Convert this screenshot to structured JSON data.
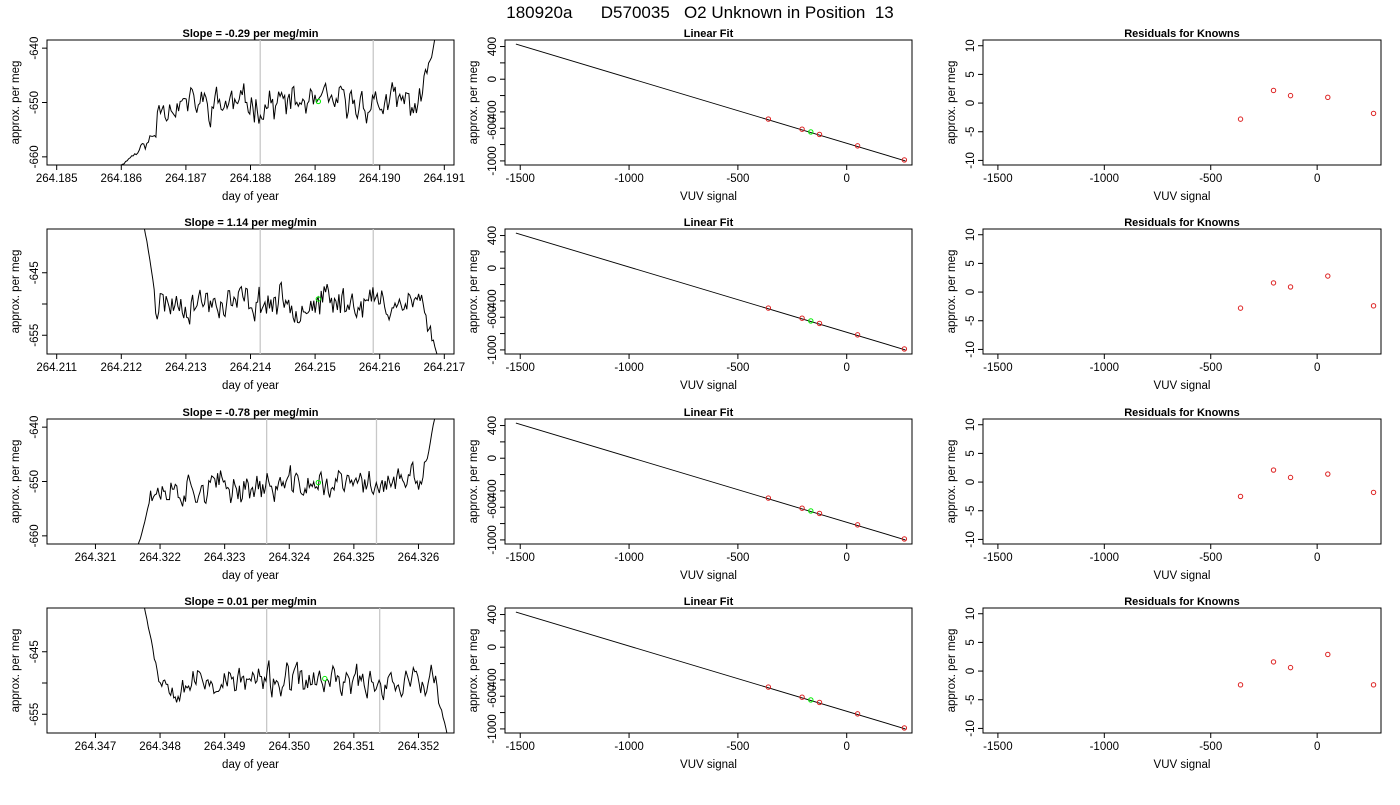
{
  "page": {
    "title": "180920a      D570035   O2 Unknown in Position  13",
    "colors": {
      "trace": "#000000",
      "marker_green": "#00ee00",
      "known_red": "#dd2222",
      "vline": "#c8c8c8"
    }
  },
  "chart_data": [
    {
      "type": "line",
      "title": "Slope =  -0.29  per meg/min",
      "xlabel": "day of year",
      "ylabel": "approx. per meg",
      "xlim": [
        264.18485,
        264.19115
      ],
      "ylim": [
        -661.5,
        -638.5
      ],
      "xticks": [
        264.185,
        264.186,
        264.187,
        264.188,
        264.189,
        264.19,
        264.191
      ],
      "xtick_labels": [
        "264.185",
        "264.186",
        "264.187",
        "264.188",
        "264.189",
        "264.190",
        "264.191"
      ],
      "yticks": [
        -660,
        -650,
        -640
      ],
      "ytick_labels": [
        "-660",
        "-650",
        "-640"
      ],
      "vlines": [
        264.18815,
        264.1899
      ],
      "green_point": [
        264.18905,
        -649.8
      ],
      "trace": {
        "x_start": 264.18595,
        "x_end": 264.19085,
        "n": 210,
        "lead_start": -662,
        "lead_base": -656,
        "lead_frac": 0.12,
        "mean": -650.2,
        "amp": 2.6,
        "trend": -0.1,
        "tail_end": -638.5,
        "tail_frac": 0.04,
        "seed": 11
      }
    },
    {
      "type": "line",
      "title": "Linear Fit",
      "xlabel": "VUV signal",
      "ylabel": "approx. per meg",
      "xlim": [
        -1570,
        300
      ],
      "ylim": [
        -1050,
        480
      ],
      "xticks": [
        -1500,
        -1000,
        -500,
        0
      ],
      "xtick_labels": [
        "-1500",
        "-1000",
        "-500",
        "0"
      ],
      "yticks": [
        -1000,
        -800,
        -600,
        -400,
        -200,
        0,
        200,
        400
      ],
      "ytick_labels": [
        "-1000",
        "",
        "-600",
        "-400",
        "",
        "0",
        "",
        "400"
      ],
      "fit_line": [
        [
          -1520,
          430
        ],
        [
          270,
          -1000
        ]
      ],
      "known_points": [
        [
          -360,
          -488
        ],
        [
          -205,
          -612
        ],
        [
          -125,
          -676
        ],
        [
          50,
          -816
        ],
        [
          265,
          -988
        ]
      ],
      "green_point": [
        -165,
        -645
      ]
    },
    {
      "type": "scatter",
      "title": "Residuals for Knowns",
      "xlabel": "VUV signal",
      "ylabel": "approx. per meg",
      "xlim": [
        -1570,
        300
      ],
      "ylim": [
        -10.8,
        11
      ],
      "xticks": [
        -1500,
        -1000,
        -500,
        0
      ],
      "xtick_labels": [
        "-1500",
        "-1000",
        "-500",
        "0"
      ],
      "yticks": [
        -10,
        -5,
        0,
        5,
        10
      ],
      "ytick_labels": [
        "-10",
        "-5",
        "0",
        "5",
        "10"
      ],
      "points": [
        [
          -360,
          -2.8
        ],
        [
          -205,
          2.2
        ],
        [
          -125,
          1.3
        ],
        [
          50,
          1.0
        ],
        [
          265,
          -1.8
        ]
      ]
    },
    {
      "type": "line",
      "title": "Slope =  1.14  per meg/min",
      "xlabel": "day of year",
      "ylabel": "approx. per meg",
      "xlim": [
        264.21085,
        264.21715
      ],
      "ylim": [
        -658,
        -638
      ],
      "xticks": [
        264.211,
        264.212,
        264.213,
        264.214,
        264.215,
        264.216,
        264.217
      ],
      "xtick_labels": [
        "264.211",
        "264.212",
        "264.213",
        "264.214",
        "264.215",
        "264.216",
        "264.217"
      ],
      "yticks": [
        -655,
        -650,
        -645
      ],
      "ytick_labels": [
        "-655",
        "",
        "-645"
      ],
      "vlines": [
        264.21415,
        264.2159
      ],
      "green_point": [
        264.21505,
        -649.2
      ],
      "trace": {
        "x_start": 264.21235,
        "x_end": 264.2169,
        "n": 200,
        "lead_start": -637.5,
        "lead_base": -648,
        "lead_frac": 0.04,
        "mean": -649.7,
        "amp": 2.3,
        "trend": 0.0,
        "tail_end": -658.5,
        "tail_frac": 0.05,
        "seed": 23
      }
    },
    {
      "type": "line",
      "title": "Linear Fit",
      "xlabel": "VUV signal",
      "ylabel": "approx. per meg",
      "xlim": [
        -1570,
        300
      ],
      "ylim": [
        -1050,
        480
      ],
      "xticks": [
        -1500,
        -1000,
        -500,
        0
      ],
      "xtick_labels": [
        "-1500",
        "-1000",
        "-500",
        "0"
      ],
      "yticks": [
        -1000,
        -800,
        -600,
        -400,
        -200,
        0,
        200,
        400
      ],
      "ytick_labels": [
        "-1000",
        "",
        "-600",
        "-400",
        "",
        "0",
        "",
        "400"
      ],
      "fit_line": [
        [
          -1520,
          430
        ],
        [
          270,
          -1000
        ]
      ],
      "known_points": [
        [
          -360,
          -488
        ],
        [
          -205,
          -612
        ],
        [
          -125,
          -676
        ],
        [
          50,
          -816
        ],
        [
          265,
          -988
        ]
      ],
      "green_point": [
        -165,
        -645
      ]
    },
    {
      "type": "scatter",
      "title": "Residuals for Knowns",
      "xlabel": "VUV signal",
      "ylabel": "approx. per meg",
      "xlim": [
        -1570,
        300
      ],
      "ylim": [
        -10.8,
        11
      ],
      "xticks": [
        -1500,
        -1000,
        -500,
        0
      ],
      "xtick_labels": [
        "-1500",
        "-1000",
        "-500",
        "0"
      ],
      "yticks": [
        -10,
        -5,
        0,
        5,
        10
      ],
      "ytick_labels": [
        "-10",
        "-5",
        "0",
        "5",
        "10"
      ],
      "points": [
        [
          -360,
          -2.8
        ],
        [
          -205,
          1.6
        ],
        [
          -125,
          0.9
        ],
        [
          50,
          2.8
        ],
        [
          265,
          -2.4
        ]
      ]
    },
    {
      "type": "line",
      "title": "Slope =  -0.78  per meg/min",
      "xlabel": "day of year",
      "ylabel": "approx. per meg",
      "xlim": [
        264.32025,
        264.32655
      ],
      "ylim": [
        -661.5,
        -638.5
      ],
      "xticks": [
        264.321,
        264.322,
        264.323,
        264.324,
        264.325,
        264.326
      ],
      "xtick_labels": [
        "264.321",
        "264.322",
        "264.323",
        "264.324",
        "264.325",
        "264.326"
      ],
      "yticks": [
        -660,
        -650,
        -640
      ],
      "ytick_labels": [
        "-660",
        "-650",
        "-640"
      ],
      "vlines": [
        264.32365,
        264.32535
      ],
      "green_point": [
        264.32445,
        -650.2
      ],
      "trace": {
        "x_start": 264.32165,
        "x_end": 264.32625,
        "n": 205,
        "lead_start": -662,
        "lead_base": -654,
        "lead_frac": 0.04,
        "mean": -650.8,
        "amp": 2.4,
        "trend": 1.5,
        "tail_end": -638.5,
        "tail_frac": 0.04,
        "seed": 37
      }
    },
    {
      "type": "line",
      "title": "Linear Fit",
      "xlabel": "VUV signal",
      "ylabel": "approx. per meg",
      "xlim": [
        -1570,
        300
      ],
      "ylim": [
        -1050,
        480
      ],
      "xticks": [
        -1500,
        -1000,
        -500,
        0
      ],
      "xtick_labels": [
        "-1500",
        "-1000",
        "-500",
        "0"
      ],
      "yticks": [
        -1000,
        -800,
        -600,
        -400,
        -200,
        0,
        200,
        400
      ],
      "ytick_labels": [
        "-1000",
        "",
        "-600",
        "-400",
        "",
        "0",
        "",
        "400"
      ],
      "fit_line": [
        [
          -1520,
          430
        ],
        [
          270,
          -1000
        ]
      ],
      "known_points": [
        [
          -360,
          -488
        ],
        [
          -205,
          -612
        ],
        [
          -125,
          -676
        ],
        [
          50,
          -816
        ],
        [
          265,
          -988
        ]
      ],
      "green_point": [
        -165,
        -645
      ]
    },
    {
      "type": "scatter",
      "title": "Residuals for Knowns",
      "xlabel": "VUV signal",
      "ylabel": "approx. per meg",
      "xlim": [
        -1570,
        300
      ],
      "ylim": [
        -10.8,
        11
      ],
      "xticks": [
        -1500,
        -1000,
        -500,
        0
      ],
      "xtick_labels": [
        "-1500",
        "-1000",
        "-500",
        "0"
      ],
      "yticks": [
        -10,
        -5,
        0,
        5,
        10
      ],
      "points": [
        [
          -360,
          -2.5
        ],
        [
          -205,
          2.1
        ],
        [
          -125,
          0.8
        ],
        [
          50,
          1.4
        ],
        [
          265,
          -1.8
        ]
      ],
      "ytick_labels": [
        "-10",
        "-5",
        "0",
        "5",
        "10"
      ]
    },
    {
      "type": "line",
      "title": "Slope =  0.01  per meg/min",
      "xlabel": "day of year",
      "ylabel": "approx. per meg",
      "xlim": [
        264.34625,
        264.35255
      ],
      "ylim": [
        -658,
        -638
      ],
      "xticks": [
        264.347,
        264.348,
        264.349,
        264.35,
        264.351,
        264.352
      ],
      "xtick_labels": [
        "264.347",
        "264.348",
        "264.349",
        "264.350",
        "264.351",
        "264.352"
      ],
      "yticks": [
        -655,
        -650,
        -645
      ],
      "ytick_labels": [
        "-655",
        "",
        "-645"
      ],
      "vlines": [
        264.34965,
        264.3514
      ],
      "green_point": [
        264.35055,
        -649.3
      ],
      "trace": {
        "x_start": 264.34775,
        "x_end": 264.35245,
        "n": 205,
        "lead_start": -637.5,
        "lead_base": -649,
        "lead_frac": 0.05,
        "mean": -649.8,
        "amp": 2.1,
        "trend": 0.0,
        "tail_end": -658.5,
        "tail_frac": 0.04,
        "seed": 53
      }
    },
    {
      "type": "line",
      "title": "Linear Fit",
      "xlabel": "VUV signal",
      "ylabel": "approx. per meg",
      "xlim": [
        -1570,
        300
      ],
      "ylim": [
        -1050,
        480
      ],
      "xticks": [
        -1500,
        -1000,
        -500,
        0
      ],
      "xtick_labels": [
        "-1500",
        "-1000",
        "-500",
        "0"
      ],
      "yticks": [
        -1000,
        -800,
        -600,
        -400,
        -200,
        0,
        200,
        400
      ],
      "ytick_labels": [
        "-1000",
        "",
        "-600",
        "-400",
        "",
        "0",
        "",
        "400"
      ],
      "fit_line": [
        [
          -1520,
          430
        ],
        [
          270,
          -1000
        ]
      ],
      "known_points": [
        [
          -360,
          -488
        ],
        [
          -205,
          -612
        ],
        [
          -125,
          -676
        ],
        [
          50,
          -816
        ],
        [
          265,
          -988
        ]
      ],
      "green_point": [
        -165,
        -645
      ]
    },
    {
      "type": "scatter",
      "title": "Residuals for Knowns",
      "xlabel": "VUV signal",
      "ylabel": "approx. per meg",
      "xlim": [
        -1570,
        300
      ],
      "ylim": [
        -10.8,
        11
      ],
      "xticks": [
        -1500,
        -1000,
        -500,
        0
      ],
      "xtick_labels": [
        "-1500",
        "-1000",
        "-500",
        "0"
      ],
      "yticks": [
        -10,
        -5,
        0,
        5,
        10
      ],
      "ytick_labels": [
        "-10",
        "-5",
        "0",
        "5",
        "10"
      ],
      "points": [
        [
          -360,
          -2.4
        ],
        [
          -205,
          1.6
        ],
        [
          -125,
          0.6
        ],
        [
          50,
          2.9
        ],
        [
          265,
          -2.4
        ]
      ]
    }
  ]
}
